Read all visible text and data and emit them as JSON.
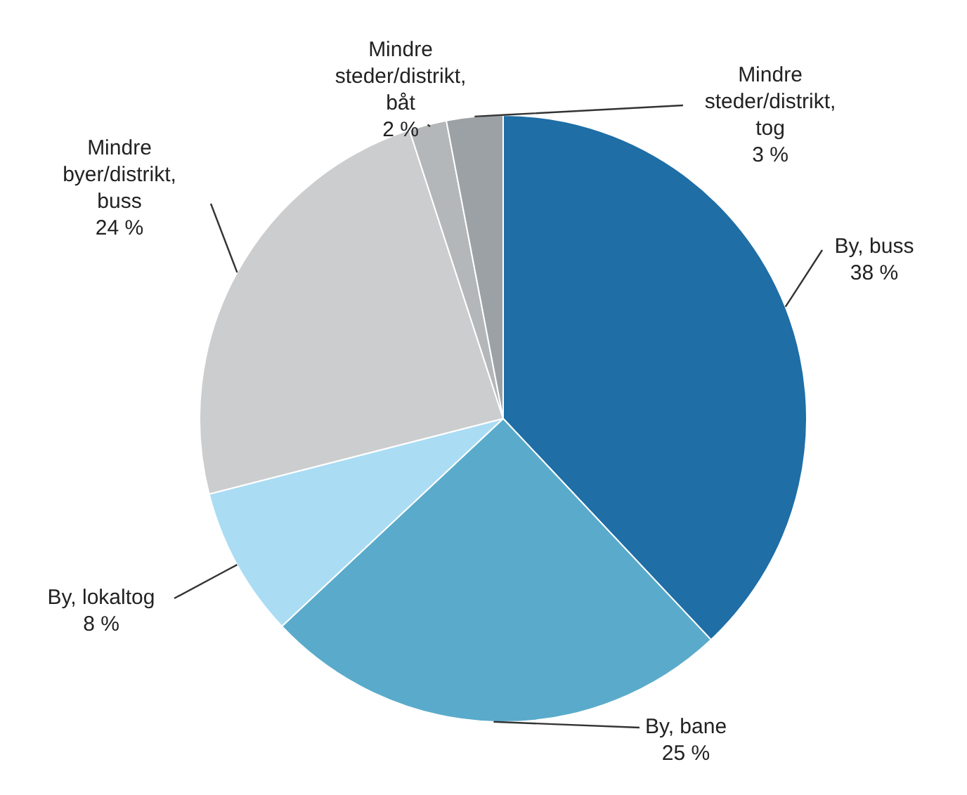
{
  "chart_data": {
    "type": "pie",
    "categories": [
      "By, buss",
      "By, bane",
      "By, lokaltog",
      "Mindre byer/distrikt, buss",
      "Mindre steder/distrikt, båt",
      "Mindre steder/distrikt, tog"
    ],
    "values": [
      38,
      25,
      8,
      24,
      2,
      3
    ],
    "value_labels": [
      "38 %",
      "25 %",
      "8 %",
      "24 %",
      "2 %",
      "3 %"
    ],
    "colors": [
      "#1f6ea6",
      "#5aabcb",
      "#aadcf4",
      "#cccdce",
      "#b4b7b9",
      "#9ba1a5"
    ]
  }
}
